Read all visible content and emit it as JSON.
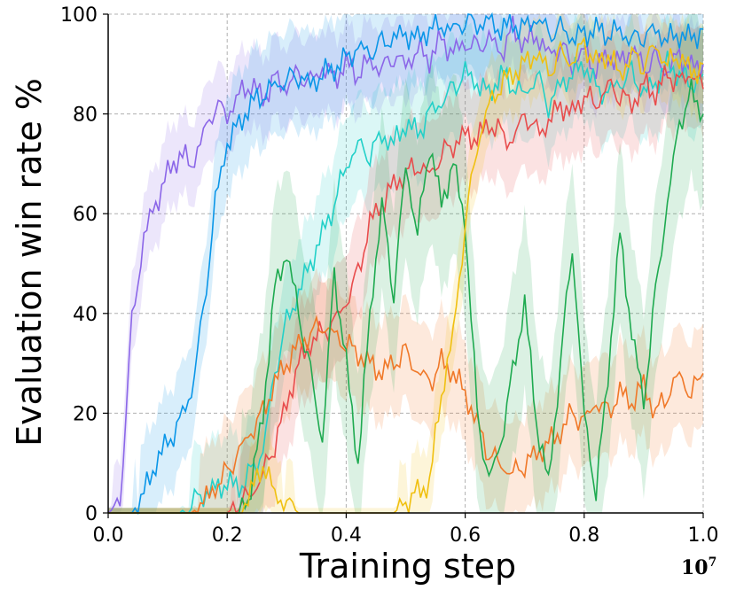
{
  "chart_data": {
    "type": "line",
    "title": "",
    "xlabel": "Training step",
    "ylabel": "Evaluation win rate %",
    "x_multiplier_label": "10",
    "x_multiplier_exp": "7",
    "xlim": [
      0.0,
      1.0
    ],
    "ylim": [
      0,
      100
    ],
    "xticks": [
      "0.0",
      "0.2",
      "0.4",
      "0.6",
      "0.8",
      "1.0"
    ],
    "yticks": [
      "0",
      "20",
      "40",
      "60",
      "80",
      "100"
    ],
    "grid": true,
    "legend": "none",
    "x": [
      0.0,
      0.02,
      0.04,
      0.06,
      0.08,
      0.1,
      0.12,
      0.14,
      0.16,
      0.18,
      0.2,
      0.22,
      0.24,
      0.26,
      0.28,
      0.3,
      0.32,
      0.34,
      0.36,
      0.38,
      0.4,
      0.42,
      0.44,
      0.46,
      0.48,
      0.5,
      0.52,
      0.54,
      0.56,
      0.58,
      0.6,
      0.62,
      0.64,
      0.66,
      0.68,
      0.7,
      0.72,
      0.74,
      0.76,
      0.78,
      0.8,
      0.82,
      0.84,
      0.86,
      0.88,
      0.9,
      0.92,
      0.94,
      0.96,
      0.98,
      1.0
    ],
    "series": [
      {
        "name": "purple",
        "color": "#8b66e8",
        "band_width": 8,
        "values": [
          0,
          2,
          38,
          55,
          62,
          68,
          72,
          70,
          76,
          82,
          80,
          84,
          86,
          83,
          87,
          85,
          88,
          86,
          89,
          87,
          90,
          88,
          91,
          89,
          92,
          90,
          93,
          91,
          95,
          92,
          94,
          93,
          95,
          92,
          97,
          94,
          96,
          92,
          94,
          90,
          93,
          89,
          92,
          90,
          93,
          89,
          91,
          88,
          92,
          89,
          90
        ]
      },
      {
        "name": "blue",
        "color": "#0a96e8",
        "band_width": 10,
        "values": [
          0,
          0,
          0,
          4,
          10,
          14,
          18,
          24,
          40,
          62,
          74,
          78,
          82,
          84,
          86,
          87,
          88,
          86,
          88,
          89,
          91,
          93,
          92,
          94,
          95,
          96,
          95,
          97,
          98,
          97,
          99,
          98,
          99,
          97,
          98,
          97,
          99,
          96,
          97,
          95,
          96,
          97,
          96,
          97,
          95,
          96,
          97,
          95,
          96,
          95,
          97
        ]
      },
      {
        "name": "cyan",
        "color": "#22d0c8",
        "band_width": 10,
        "values": [
          0,
          0,
          0,
          0,
          0,
          0,
          0,
          2,
          4,
          5,
          6,
          5,
          8,
          12,
          28,
          38,
          44,
          50,
          56,
          62,
          70,
          74,
          72,
          76,
          74,
          78,
          76,
          80,
          82,
          85,
          88,
          86,
          84,
          88,
          86,
          84,
          88,
          82,
          86,
          88,
          90,
          85,
          84,
          86,
          88,
          84,
          86,
          90,
          88,
          86,
          88
        ]
      },
      {
        "name": "red",
        "color": "#e84c4c",
        "band_width": 10,
        "values": [
          0,
          0,
          0,
          0,
          0,
          0,
          0,
          0,
          0,
          0,
          0,
          2,
          4,
          8,
          14,
          22,
          30,
          34,
          36,
          38,
          42,
          48,
          58,
          62,
          66,
          68,
          70,
          68,
          72,
          74,
          76,
          75,
          78,
          76,
          74,
          80,
          76,
          78,
          82,
          80,
          84,
          82,
          86,
          84,
          82,
          86,
          84,
          88,
          86,
          88,
          85
        ]
      },
      {
        "name": "orange",
        "color": "#f07828",
        "band_width": 10,
        "values": [
          0,
          0,
          0,
          0,
          0,
          0,
          0,
          0,
          2,
          5,
          8,
          12,
          16,
          20,
          26,
          30,
          34,
          36,
          38,
          36,
          34,
          32,
          30,
          28,
          30,
          32,
          28,
          26,
          30,
          28,
          24,
          18,
          12,
          10,
          8,
          10,
          12,
          14,
          16,
          20,
          18,
          22,
          20,
          24,
          22,
          26,
          20,
          24,
          28,
          24,
          28
        ]
      },
      {
        "name": "green",
        "color": "#1eaa50",
        "band_width": 18,
        "values": [
          0,
          0,
          0,
          0,
          0,
          0,
          0,
          0,
          0,
          0,
          0,
          0,
          5,
          20,
          45,
          52,
          40,
          28,
          14,
          48,
          30,
          10,
          40,
          62,
          44,
          70,
          56,
          74,
          62,
          70,
          58,
          20,
          6,
          14,
          28,
          42,
          18,
          6,
          30,
          54,
          20,
          4,
          28,
          56,
          36,
          22,
          44,
          62,
          78,
          84,
          80
        ]
      },
      {
        "name": "yellow",
        "color": "#f0c010",
        "band_width": 8,
        "values": [
          0,
          0,
          0,
          0,
          0,
          0,
          0,
          0,
          0,
          0,
          0,
          0,
          4,
          10,
          4,
          2,
          0,
          0,
          0,
          0,
          0,
          0,
          0,
          0,
          0,
          2,
          4,
          6,
          24,
          36,
          58,
          74,
          82,
          86,
          88,
          90,
          92,
          88,
          92,
          90,
          94,
          90,
          92,
          88,
          92,
          90,
          94,
          90,
          92,
          88,
          90
        ]
      }
    ]
  }
}
